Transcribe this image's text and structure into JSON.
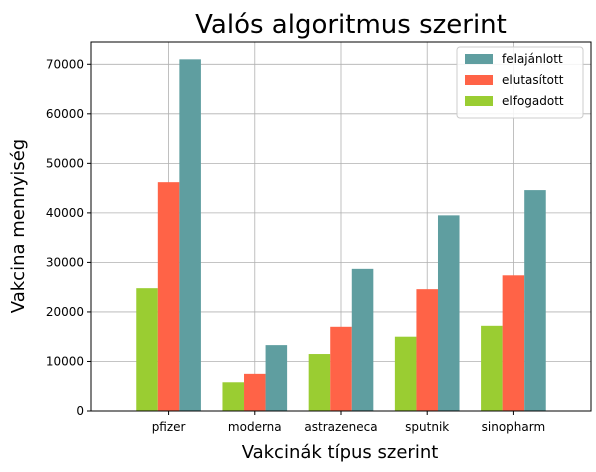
{
  "chart_data": {
    "type": "bar",
    "title": "Valós algoritmus szerint",
    "xlabel": "Vakcinák típus szerint",
    "ylabel": "Vakcina mennyiség",
    "categories": [
      "pfizer",
      "moderna",
      "astrazeneca",
      "sputnik",
      "sinopharm"
    ],
    "series": [
      {
        "name": "elfogadott",
        "color": "#9ACD32",
        "values": [
          24800,
          5800,
          11500,
          15000,
          17200
        ]
      },
      {
        "name": "elutasított",
        "color": "#FF6347",
        "values": [
          46200,
          7500,
          17000,
          24600,
          27400
        ]
      },
      {
        "name": "felajánlott",
        "color": "#5F9EA0",
        "values": [
          71000,
          13300,
          28700,
          39500,
          44600
        ]
      }
    ],
    "legend_order": [
      "felajánlott",
      "elutasított",
      "elfogadott"
    ],
    "ylim": [
      0,
      74500
    ],
    "yticks": [
      0,
      10000,
      20000,
      30000,
      40000,
      50000,
      60000,
      70000
    ],
    "grid": true,
    "legend_position": "top-right"
  }
}
